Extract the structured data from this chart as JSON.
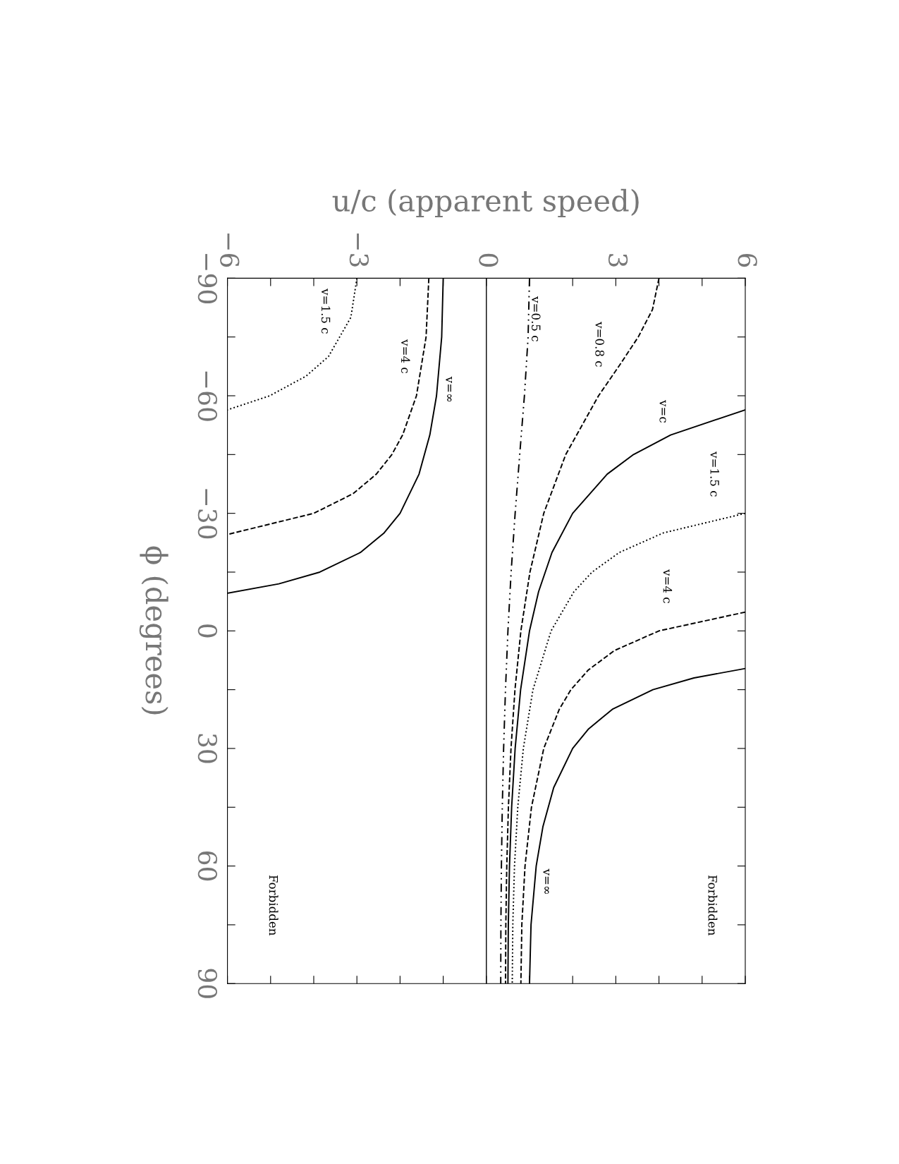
{
  "chart_data": {
    "type": "line",
    "xlabel": "u/c (apparent speed)",
    "ylabel": "ϕ (degrees)",
    "xlim": [
      -6,
      6
    ],
    "ylim": [
      90,
      -90
    ],
    "xticks": [
      -6,
      {
        "value": -5,
        "label": null
      },
      {
        "value": -4,
        "label": null
      },
      -3,
      {
        "value": -2,
        "label": null
      },
      {
        "value": -1,
        "label": null
      },
      0,
      {
        "value": 1,
        "label": null
      },
      {
        "value": 2,
        "label": null
      },
      3,
      {
        "value": 4,
        "label": null
      },
      {
        "value": 5,
        "label": null
      },
      6
    ],
    "yticks": [
      -90,
      {
        "value": -75,
        "label": null
      },
      -60,
      {
        "value": -45,
        "label": null
      },
      -30,
      {
        "value": -15,
        "label": null
      },
      0,
      {
        "value": 15,
        "label": null
      },
      30,
      {
        "value": 45,
        "label": null
      },
      60,
      {
        "value": 75,
        "label": null
      },
      90
    ],
    "marker": "none",
    "ref_lines": [
      {
        "axis": "x",
        "value": 0,
        "color": "#000000"
      }
    ],
    "series": [
      {
        "color": "#000000",
        "line_style": "dashdot",
        "x": [
          1,
          0.967,
          0.882,
          0.773,
          0.667,
          0.574,
          0.5,
          0.443,
          0.4,
          0.369,
          0.349,
          0.337,
          0.333
        ],
        "values": [
          -90,
          -75,
          -60,
          -45,
          -30,
          -15,
          0,
          15,
          30,
          45,
          60,
          75,
          90
        ]
      },
      {
        "color": "#000000",
        "line_style": "dashed",
        "x": [
          4,
          3.85,
          3.52,
          3.1,
          2.6,
          1.84,
          1.33,
          1.01,
          0.8,
          0.663,
          0.571,
          0.511,
          0.473,
          0.451,
          0.444
        ],
        "values": [
          -90,
          -82,
          -75,
          -68,
          -60,
          -45,
          -30,
          -15,
          0,
          15,
          30,
          45,
          60,
          75,
          90
        ]
      },
      {
        "color": "#000000",
        "line_style": "solid",
        "x": [
          6,
          4.27,
          3.41,
          2.8,
          2,
          1.52,
          1.21,
          1,
          0.794,
          0.667,
          0.586,
          0.536,
          0.509,
          0.5
        ],
        "values": [
          -56.4,
          -50,
          -45,
          -40,
          -30,
          -20,
          -10,
          0,
          15,
          30,
          45,
          60,
          75,
          90
        ]
      },
      {
        "color": "#000000",
        "line_style": "dotted",
        "x": [
          6,
          4.1,
          3.08,
          2.45,
          2.03,
          1.5,
          1.08,
          0.857,
          0.728,
          0.652,
          0.613,
          0.6
        ],
        "values": [
          -30,
          -25,
          -20,
          -15,
          -10,
          0,
          15,
          30,
          45,
          60,
          75,
          90
        ]
      },
      {
        "color": "#000000",
        "line_style": "dotted",
        "x": [
          -3,
          -3.14,
          -3.66,
          -4.18,
          -5.02,
          -6
        ],
        "values": [
          -90,
          -80,
          -70,
          -65,
          -60,
          -56.4
        ]
      },
      {
        "color": "#000000",
        "line_style": "dashed",
        "x": [
          6,
          4,
          2.97,
          2.36,
          1.96,
          1.69,
          1.33,
          1.045,
          0.896,
          0.822,
          0.8
        ],
        "values": [
          -4.8,
          0,
          5,
          10,
          15,
          20,
          30,
          45,
          60,
          75,
          90
        ]
      },
      {
        "color": "#000000",
        "line_style": "dashed",
        "x": [
          -1.333,
          -1.397,
          -1.62,
          -1.94,
          -2.19,
          -2.55,
          -3.09,
          -4,
          -6
        ],
        "values": [
          -90,
          -75,
          -60,
          -50,
          -45,
          -40,
          -35,
          -30,
          -24.6
        ]
      },
      {
        "color": "#000000",
        "line_style": "solid",
        "x": [
          6,
          4.81,
          3.86,
          2.92,
          2.37,
          2,
          1.56,
          1.31,
          1.155,
          1.035,
          1
        ],
        "values": [
          9.6,
          12,
          15,
          20,
          25,
          30,
          40,
          50,
          60,
          75,
          90
        ]
      },
      {
        "color": "#000000",
        "line_style": "solid",
        "x": [
          -1,
          -1.035,
          -1.155,
          -1.31,
          -1.56,
          -2,
          -2.37,
          -2.92,
          -3.86,
          -4.81,
          -6
        ],
        "values": [
          -90,
          -75,
          -60,
          -50,
          -40,
          -30,
          -25,
          -20,
          -15,
          -12,
          -9.6
        ]
      }
    ],
    "annotations": [
      "v=1.5 c",
      "v=4 c",
      "v=∞",
      "v=0.5 c",
      "v=0.8 c",
      "v=c",
      "v=1.5 c",
      "v=4 c",
      "v=∞",
      "Forbidden",
      "Forbidden"
    ]
  }
}
